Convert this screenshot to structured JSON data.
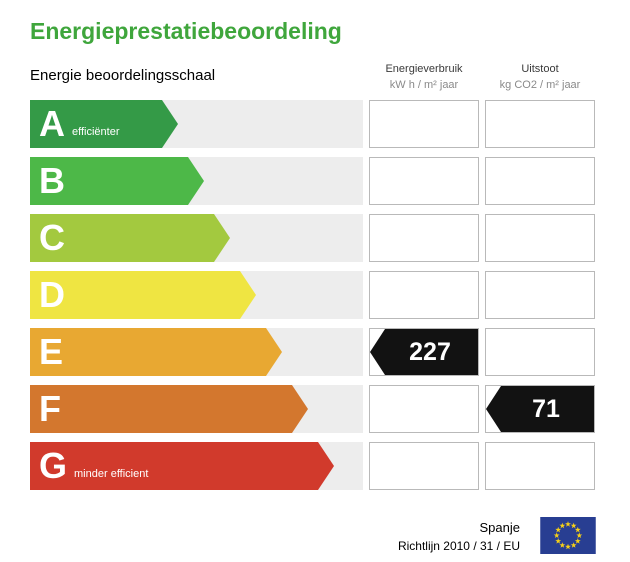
{
  "title": "Energieprestatiebeoordeling",
  "table": {
    "scale_header": "Energie beoordelingsschaal",
    "columns": [
      {
        "id": "energy",
        "line1": "Energieverbruik",
        "line2": "kW h / m² jaar"
      },
      {
        "id": "emission",
        "line1": "Uitstoot",
        "line2": "kg CO2 / m² jaar"
      }
    ]
  },
  "bands": [
    {
      "letter": "A",
      "label": "efficiënter",
      "color": "#349a47",
      "arrow_width": 148
    },
    {
      "letter": "B",
      "label": "",
      "color": "#4db848",
      "arrow_width": 174
    },
    {
      "letter": "C",
      "label": "",
      "color": "#a3c93f",
      "arrow_width": 200
    },
    {
      "letter": "D",
      "label": "",
      "color": "#efe542",
      "arrow_width": 226
    },
    {
      "letter": "E",
      "label": "",
      "color": "#e8a832",
      "arrow_width": 252
    },
    {
      "letter": "F",
      "label": "",
      "color": "#d3772e",
      "arrow_width": 278
    },
    {
      "letter": "G",
      "label": "minder efficient",
      "color": "#d13a2c",
      "arrow_width": 304
    }
  ],
  "indicators": [
    {
      "column": "energy",
      "band": "E",
      "value": "227"
    },
    {
      "column": "emission",
      "band": "F",
      "value": "71"
    }
  ],
  "footer": {
    "country": "Spanje",
    "directive": "Richtlijn 2010 / 31 / EU"
  },
  "colors": {
    "title": "#3fa63c",
    "indicator_bg": "#121212",
    "flag_bg": "#283e92",
    "flag_star": "#f7d117"
  },
  "chart_data": {
    "type": "bar",
    "title": "Energieprestatiebeoordeling",
    "categories": [
      "A",
      "B",
      "C",
      "D",
      "E",
      "F",
      "G"
    ],
    "category_labels": {
      "A": "efficiënter",
      "G": "minder efficient"
    },
    "series": [
      {
        "name": "Energieverbruik",
        "unit": "kW h / m² jaar",
        "band": "E",
        "value": 227
      },
      {
        "name": "Uitstoot",
        "unit": "kg CO2 / m² jaar",
        "band": "F",
        "value": 71
      }
    ],
    "band_colors": [
      "#349a47",
      "#4db848",
      "#a3c93f",
      "#efe542",
      "#e8a832",
      "#d3772e",
      "#d13a2c"
    ],
    "legend_position": "none",
    "notes": "Energy rating scale; arrow length increases from band A to band G; black arrows mark rated values."
  }
}
